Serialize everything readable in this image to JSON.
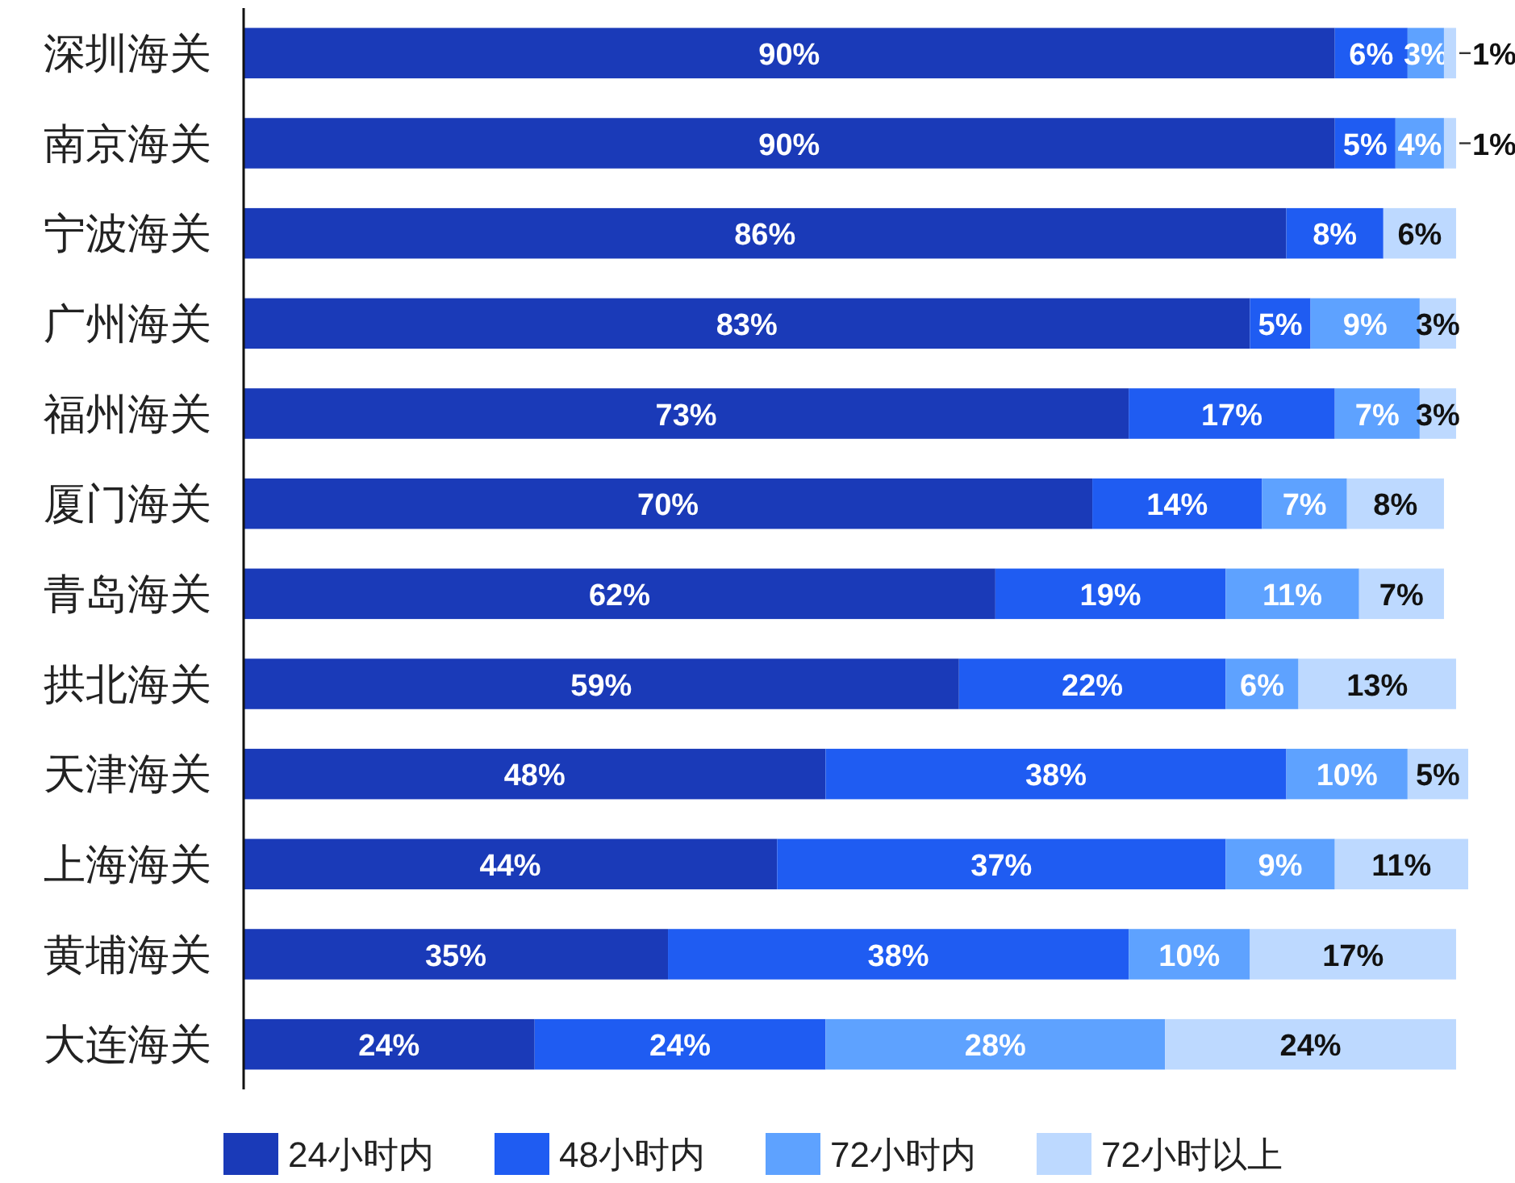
{
  "chart_data": {
    "type": "bar",
    "orientation": "horizontal",
    "stacked": true,
    "legend": "bottom",
    "xlim": [
      0,
      101
    ],
    "tick_labels": "y",
    "categories": [
      "深圳海关",
      "南京海关",
      "宁波海关",
      "广州海关",
      "福州海关",
      "厦门海关",
      "青岛海关",
      "拱北海关",
      "天津海关",
      "上海海关",
      "黄埔海关",
      "大连海关"
    ],
    "series": [
      {
        "name": "24小时内",
        "color": "#1a3ab8",
        "values": [
          90,
          90,
          86,
          83,
          73,
          70,
          62,
          59,
          48,
          44,
          35,
          24
        ],
        "value_labels": [
          "90%",
          "90%",
          "86%",
          "83%",
          "73%",
          "70%",
          "62%",
          "59%",
          "48%",
          "44%",
          "35%",
          "24%"
        ]
      },
      {
        "name": "48小时内",
        "color": "#1f5cf2",
        "values": [
          6,
          5,
          8,
          5,
          17,
          14,
          19,
          22,
          38,
          37,
          38,
          24
        ],
        "value_labels": [
          "6%",
          "5%",
          "8%",
          "5%",
          "17%",
          "14%",
          "19%",
          "22%",
          "38%",
          "37%",
          "38%",
          "24%"
        ]
      },
      {
        "name": "72小时内",
        "color": "#5ea2ff",
        "values": [
          3,
          4,
          null,
          9,
          7,
          7,
          11,
          6,
          10,
          9,
          10,
          28
        ],
        "value_labels": [
          "3%",
          "4%",
          null,
          "9%",
          "7%",
          "7%",
          "11%",
          "6%",
          "10%",
          "9%",
          "10%",
          "28%"
        ]
      },
      {
        "name": "72小时以上",
        "color": "#bdd9ff",
        "values": [
          1,
          1,
          6,
          3,
          3,
          8,
          7,
          13,
          5,
          11,
          17,
          24
        ],
        "value_labels": [
          "1%",
          "1%",
          "6%",
          "3%",
          "3%",
          "8%",
          "7%",
          "13%",
          "5%",
          "11%",
          "17%",
          "24%"
        ]
      }
    ]
  }
}
